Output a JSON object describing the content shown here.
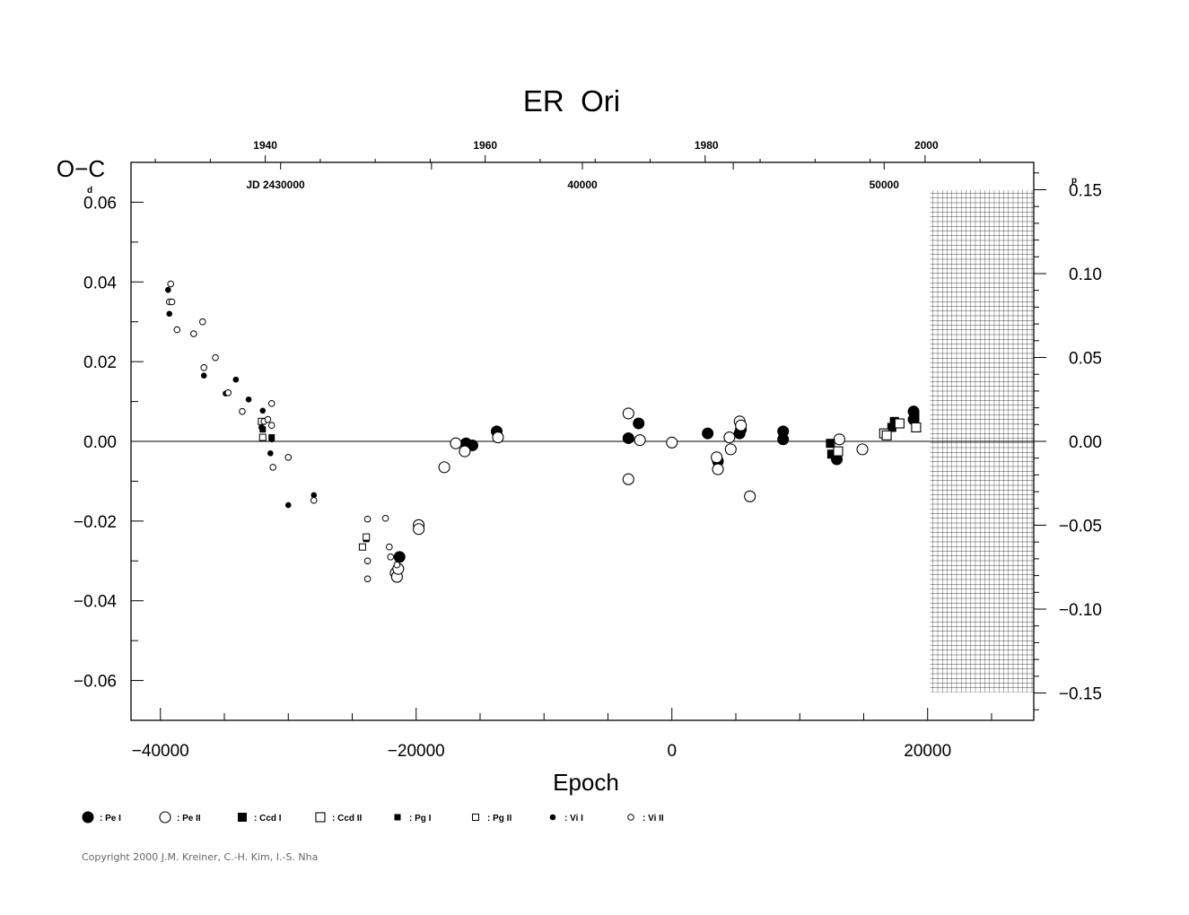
{
  "chart_data": {
    "type": "scatter",
    "title": "ER  Ori",
    "xlabel": "Epoch",
    "ylabel": "O−C",
    "ylabel_unit": "d",
    "y2_unit": "p",
    "xlim": [
      -42300,
      28300
    ],
    "ylim": [
      -0.07,
      0.07
    ],
    "y2lim": [
      -0.1663,
      0.1663
    ],
    "x_ticks": [
      "−40000",
      "−20000",
      "0",
      "20000"
    ],
    "x_tick_values": [
      -40000,
      -20000,
      0,
      20000
    ],
    "y_ticks": [
      "0.06",
      "0.04",
      "0.02",
      "0.00",
      "−0.02",
      "−0.04",
      "−0.06"
    ],
    "y_tick_values": [
      0.06,
      0.04,
      0.02,
      0.0,
      -0.02,
      -0.04,
      -0.06
    ],
    "y2_ticks": [
      "0.15",
      "0.10",
      "0.05",
      "0.00",
      "−0.05",
      "−0.10",
      "−0.15"
    ],
    "y2_tick_values": [
      0.15,
      0.1,
      0.05,
      0.0,
      -0.05,
      -0.1,
      -0.15
    ],
    "top_year_ticks": [
      "1940",
      "1960",
      "1980",
      "2000"
    ],
    "top_year_epochs": [
      -31800,
      -14600,
      2700,
      19900
    ],
    "jd_labels": [
      "JD 2430000",
      "40000",
      "50000"
    ],
    "jd_label_epochs": [
      -31000,
      -7000,
      16600
    ],
    "hatched_region": [
      20200,
      28300
    ],
    "series": [
      {
        "name": ": Pe I",
        "marker": "filled-circle-large",
        "points": [
          [
            -21300,
            -0.029
          ],
          [
            -16100,
            -0.0005
          ],
          [
            -15600,
            -0.001
          ],
          [
            -13700,
            0.0025
          ],
          [
            -3400,
            0.0008
          ],
          [
            -2600,
            0.0045
          ],
          [
            2800,
            0.002
          ],
          [
            3600,
            -0.005
          ],
          [
            5300,
            0.002
          ],
          [
            5400,
            0.003
          ],
          [
            8700,
            0.0025
          ],
          [
            8700,
            0.0005
          ],
          [
            12900,
            -0.0045
          ],
          [
            18900,
            0.0075
          ],
          [
            18900,
            0.0055
          ]
        ]
      },
      {
        "name": ": Pe II",
        "marker": "open-circle-large",
        "points": [
          [
            -21600,
            -0.033
          ],
          [
            -21500,
            -0.034
          ],
          [
            -21400,
            -0.032
          ],
          [
            -19800,
            -0.021
          ],
          [
            -19800,
            -0.022
          ],
          [
            -17800,
            -0.0065
          ],
          [
            -16900,
            -0.0005
          ],
          [
            -16200,
            -0.0025
          ],
          [
            -13600,
            0.001
          ],
          [
            -3400,
            0.007
          ],
          [
            -3400,
            -0.0095
          ],
          [
            -2500,
            0.0003
          ],
          [
            0,
            -0.0003
          ],
          [
            3500,
            -0.004
          ],
          [
            3600,
            -0.007
          ],
          [
            4500,
            0.001
          ],
          [
            4600,
            -0.002
          ],
          [
            5300,
            0.005
          ],
          [
            5400,
            0.004
          ],
          [
            6100,
            -0.0138
          ],
          [
            13100,
            0.0005
          ],
          [
            14900,
            -0.002
          ]
        ]
      },
      {
        "name": ": Ccd I",
        "marker": "filled-square-large",
        "points": [
          [
            12400,
            -0.0005
          ],
          [
            12500,
            -0.0032
          ],
          [
            17200,
            0.0035
          ],
          [
            17400,
            0.005
          ],
          [
            19000,
            0.006
          ]
        ]
      },
      {
        "name": ": Ccd II",
        "marker": "open-square-large",
        "points": [
          [
            13000,
            -0.0025
          ],
          [
            16600,
            0.002
          ],
          [
            16800,
            0.0015
          ],
          [
            17800,
            0.0045
          ],
          [
            19100,
            0.0035
          ]
        ]
      },
      {
        "name": ": Pg I",
        "marker": "filled-square-small",
        "points": [
          [
            -32000,
            0.003
          ],
          [
            -31300,
            0.001
          ],
          [
            -23900,
            -0.0245
          ]
        ]
      },
      {
        "name": ": Pg II",
        "marker": "open-square-small",
        "points": [
          [
            -32100,
            0.005
          ],
          [
            -32000,
            0.001
          ],
          [
            -24200,
            -0.0265
          ],
          [
            -23900,
            -0.024
          ]
        ]
      },
      {
        "name": ": Vi I",
        "marker": "filled-circle-small",
        "points": [
          [
            -39400,
            0.038
          ],
          [
            -39300,
            0.032
          ],
          [
            -36600,
            0.0165
          ],
          [
            -34900,
            0.012
          ],
          [
            -34100,
            0.0155
          ],
          [
            -33100,
            0.0105
          ],
          [
            -32000,
            0.0077
          ],
          [
            -32100,
            0.0035
          ],
          [
            -31400,
            -0.003
          ],
          [
            -31300,
            0.0005
          ],
          [
            -30000,
            -0.016
          ],
          [
            -28000,
            -0.0135
          ]
        ]
      },
      {
        "name": ": Vi II",
        "marker": "open-circle-small",
        "points": [
          [
            -39200,
            0.0395
          ],
          [
            -39300,
            0.035
          ],
          [
            -39100,
            0.035
          ],
          [
            -38700,
            0.028
          ],
          [
            -37400,
            0.027
          ],
          [
            -36700,
            0.03
          ],
          [
            -36600,
            0.0185
          ],
          [
            -35700,
            0.021
          ],
          [
            -34700,
            0.0122
          ],
          [
            -33600,
            0.0075
          ],
          [
            -31900,
            0.005
          ],
          [
            -31600,
            0.0055
          ],
          [
            -31300,
            0.0095
          ],
          [
            -31300,
            0.004
          ],
          [
            -31200,
            -0.0065
          ],
          [
            -30000,
            -0.004
          ],
          [
            -28000,
            -0.0148
          ],
          [
            -23800,
            -0.0195
          ],
          [
            -23800,
            -0.03
          ],
          [
            -23800,
            -0.0345
          ],
          [
            -22400,
            -0.0193
          ],
          [
            -22100,
            -0.0265
          ],
          [
            -22000,
            -0.029
          ],
          [
            -21500,
            -0.031
          ]
        ]
      }
    ]
  },
  "copyright": "Copyright 2000 J.M. Kreiner, C.-H. Kim, I.-S. Nha"
}
